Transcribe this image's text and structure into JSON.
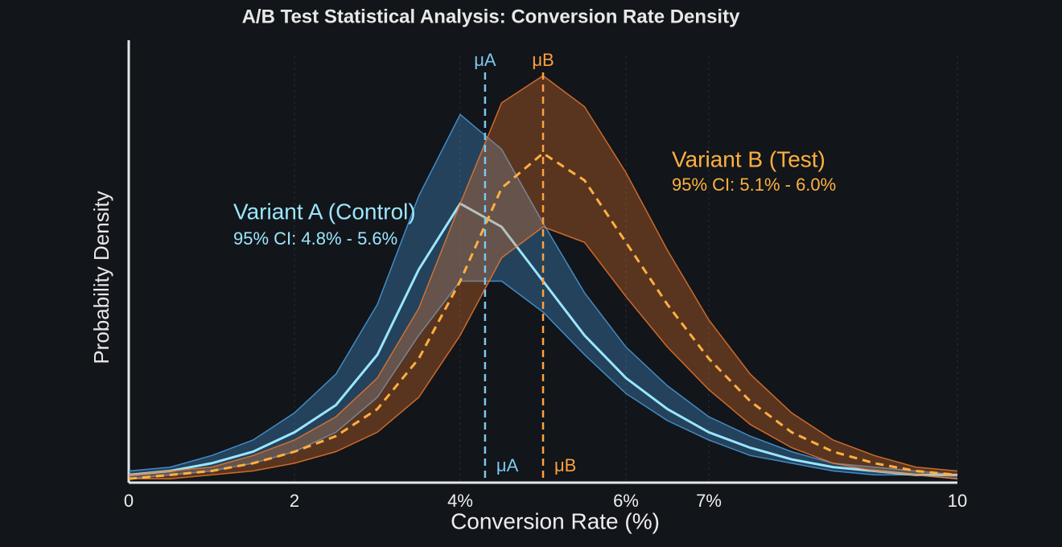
{
  "chart_data": {
    "type": "density",
    "title": "A/B Test Statistical Analysis: Conversion Rate Density",
    "x_label": "Conversion Rate (%)",
    "y_label": "Probability Density",
    "x": [
      0,
      0.5,
      1,
      1.5,
      2,
      2.5,
      3,
      3.5,
      4,
      4.5,
      5,
      5.5,
      6,
      6.5,
      7,
      7.5,
      8,
      8.5,
      9,
      9.5,
      10
    ],
    "series": [
      {
        "name": "Variant A (Control)",
        "ci_label": "95% CI: 4.8% - 5.6%",
        "color": "#4aa3e8",
        "line_color": "#9ae6ff",
        "dashed": false,
        "values": [
          0.02,
          0.03,
          0.05,
          0.08,
          0.13,
          0.2,
          0.33,
          0.55,
          0.72,
          0.66,
          0.52,
          0.38,
          0.27,
          0.19,
          0.13,
          0.09,
          0.06,
          0.04,
          0.03,
          0.02,
          0.02
        ],
        "upper": [
          0.03,
          0.04,
          0.07,
          0.11,
          0.18,
          0.28,
          0.46,
          0.74,
          0.95,
          0.86,
          0.67,
          0.49,
          0.35,
          0.25,
          0.17,
          0.12,
          0.08,
          0.05,
          0.04,
          0.03,
          0.02
        ],
        "lower": [
          0.01,
          0.02,
          0.03,
          0.05,
          0.08,
          0.13,
          0.22,
          0.38,
          0.52,
          0.52,
          0.44,
          0.33,
          0.23,
          0.16,
          0.11,
          0.07,
          0.05,
          0.03,
          0.02,
          0.02,
          0.01
        ]
      },
      {
        "name": "Variant B (Test)",
        "ci_label": "95% CI: 5.1% - 6.0%",
        "color": "#f07a30",
        "line_color": "#ffb040",
        "dashed": true,
        "values": [
          0.01,
          0.02,
          0.03,
          0.05,
          0.08,
          0.12,
          0.19,
          0.32,
          0.52,
          0.76,
          0.85,
          0.78,
          0.62,
          0.46,
          0.32,
          0.21,
          0.13,
          0.08,
          0.05,
          0.03,
          0.02
        ],
        "upper": [
          0.02,
          0.03,
          0.04,
          0.07,
          0.11,
          0.17,
          0.27,
          0.45,
          0.72,
          0.98,
          1.05,
          0.97,
          0.8,
          0.6,
          0.42,
          0.28,
          0.18,
          0.11,
          0.07,
          0.04,
          0.03
        ],
        "lower": [
          0.01,
          0.01,
          0.02,
          0.03,
          0.05,
          0.08,
          0.13,
          0.22,
          0.38,
          0.58,
          0.66,
          0.62,
          0.48,
          0.35,
          0.24,
          0.15,
          0.09,
          0.05,
          0.03,
          0.02,
          0.01
        ]
      }
    ],
    "mean_lines": [
      {
        "label": "μA",
        "value": 4.3,
        "color": "#7cc8f0"
      },
      {
        "label": "μB",
        "value": 5.0,
        "color": "#ffa040"
      }
    ],
    "xlim": [
      0,
      10
    ],
    "xticks": [
      0,
      2,
      {
        "value": 4,
        "label": "4%"
      },
      {
        "value": 6,
        "label": "6%"
      },
      {
        "value": 7,
        "label": "7%"
      },
      10
    ],
    "ylim": [
      0,
      1.1
    ],
    "grid": true
  }
}
